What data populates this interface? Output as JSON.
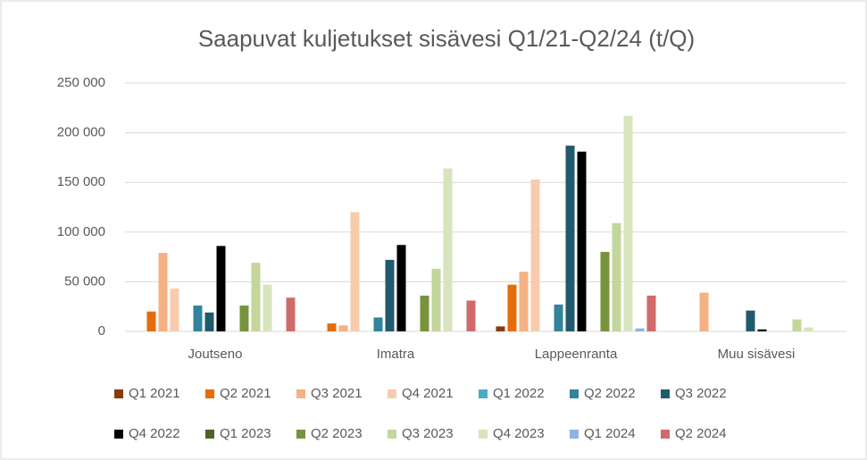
{
  "chart_data": {
    "type": "bar",
    "title": "Saapuvat kuljetukset sisävesi Q1/21-Q2/24 (t/Q)",
    "categories": [
      "Joutseno",
      "Imatra",
      "Lappeenranta",
      "Muu sisävesi"
    ],
    "series": [
      {
        "name": "Q1 2021",
        "color": "#843c0c",
        "values": [
          0,
          0,
          5000,
          0
        ]
      },
      {
        "name": "Q2 2021",
        "color": "#e46c0a",
        "values": [
          20000,
          8000,
          47000,
          0
        ]
      },
      {
        "name": "Q3 2021",
        "color": "#f4b183",
        "values": [
          79000,
          6000,
          60000,
          39000
        ]
      },
      {
        "name": "Q4 2021",
        "color": "#f8cbad",
        "values": [
          43000,
          120000,
          153000,
          0
        ]
      },
      {
        "name": "Q1 2022",
        "color": "#4bacc6",
        "values": [
          0,
          0,
          0,
          0
        ]
      },
      {
        "name": "Q2 2022",
        "color": "#31849b",
        "values": [
          26000,
          14000,
          27000,
          0
        ]
      },
      {
        "name": "Q3 2022",
        "color": "#215a6d",
        "values": [
          19000,
          72000,
          187000,
          21000
        ]
      },
      {
        "name": "Q4 2022",
        "color": "#000000",
        "values": [
          86000,
          87000,
          181000,
          2000
        ]
      },
      {
        "name": "Q1 2023",
        "color": "#4f6228",
        "values": [
          0,
          0,
          0,
          0
        ]
      },
      {
        "name": "Q2 2023",
        "color": "#77933c",
        "values": [
          26000,
          36000,
          80000,
          0
        ]
      },
      {
        "name": "Q3 2023",
        "color": "#c3d69b",
        "values": [
          69000,
          63000,
          109000,
          12000
        ]
      },
      {
        "name": "Q4 2023",
        "color": "#d7e4bd",
        "values": [
          47000,
          164000,
          217000,
          4000
        ]
      },
      {
        "name": "Q1 2024",
        "color": "#8eb4e3",
        "values": [
          0,
          0,
          3000,
          0
        ]
      },
      {
        "name": "Q2 2024",
        "color": "#d16b6b",
        "values": [
          34000,
          31000,
          36000,
          0
        ]
      }
    ],
    "ylim": [
      0,
      250000
    ],
    "yticks": [
      0,
      {
        "value": 50000,
        "label": "50 000"
      },
      {
        "value": 100000,
        "label": "100 000"
      },
      {
        "value": 150000,
        "label": "150 000"
      },
      {
        "value": 200000,
        "label": "200 000"
      },
      {
        "value": 250000,
        "label": "250 000"
      }
    ],
    "grid": true,
    "legend": "bottom"
  }
}
